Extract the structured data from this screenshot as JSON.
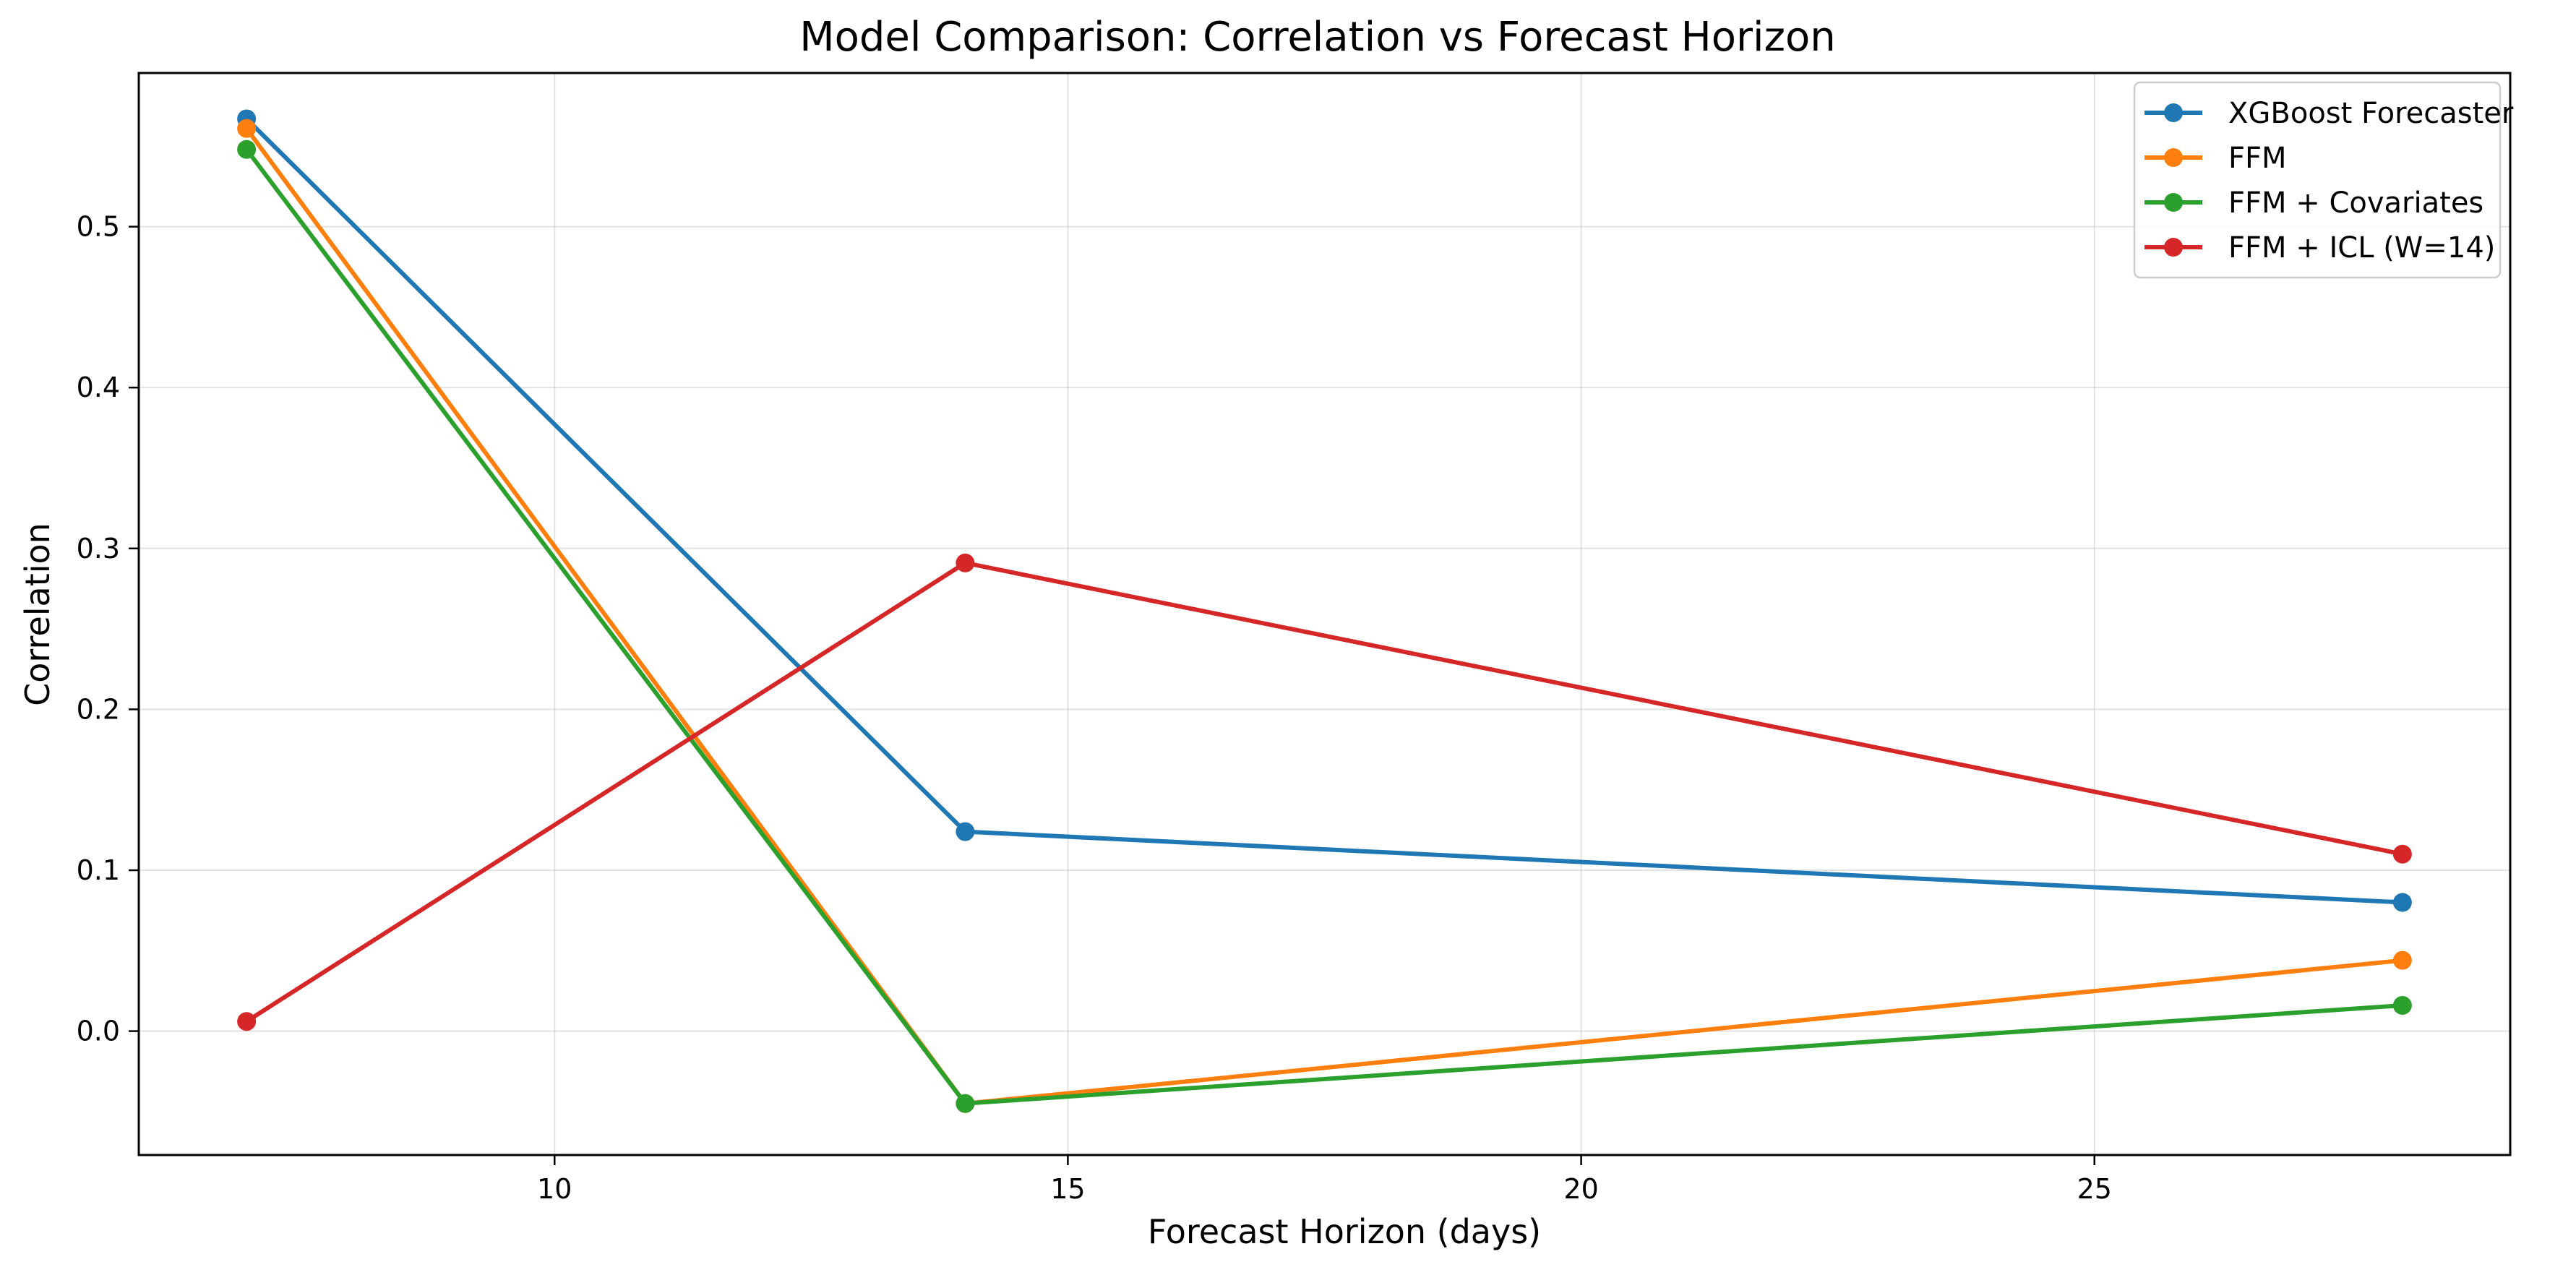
{
  "chart_data": {
    "type": "line",
    "title": "Model Comparison: Correlation vs Forecast Horizon",
    "xlabel": "Forecast Horizon (days)",
    "ylabel": "Correlation",
    "xlim": [
      5.95,
      29.05
    ],
    "ylim": [
      -0.077,
      0.5955
    ],
    "xticks": [
      10,
      15,
      20,
      25
    ],
    "yticks": [
      0.0,
      0.1,
      0.2,
      0.3,
      0.4,
      0.5
    ],
    "xtick_labels": [
      "10",
      "15",
      "20",
      "25"
    ],
    "ytick_labels": [
      "0.0",
      "0.1",
      "0.2",
      "0.3",
      "0.4",
      "0.5"
    ],
    "grid": true,
    "legend_position": "top-right",
    "x": [
      7,
      14,
      28
    ],
    "series": [
      {
        "name": "XGBoost Forecaster",
        "color": "#1f77b4",
        "values": [
          0.567,
          0.124,
          0.08
        ]
      },
      {
        "name": "FFM",
        "color": "#ff7f0e",
        "values": [
          0.561,
          -0.045,
          0.044
        ]
      },
      {
        "name": "FFM + Covariates",
        "color": "#2ca02c",
        "values": [
          0.548,
          -0.045,
          0.016
        ]
      },
      {
        "name": "FFM + ICL (W=14)",
        "color": "#d62728",
        "values": [
          0.006,
          0.291,
          0.11
        ]
      }
    ]
  }
}
